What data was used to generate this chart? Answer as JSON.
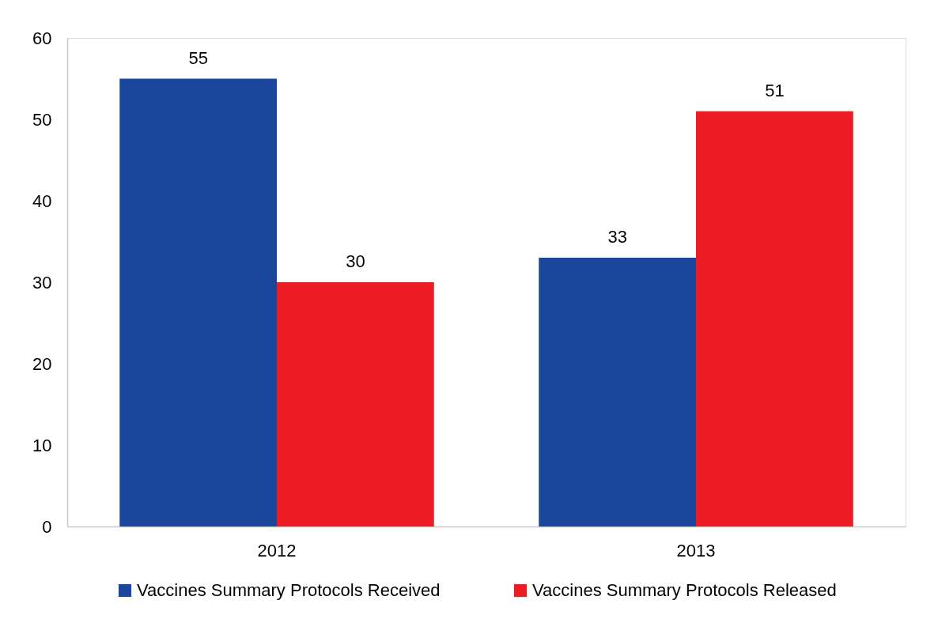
{
  "chart_data": {
    "type": "bar",
    "categories": [
      "2012",
      "2013"
    ],
    "series": [
      {
        "name": "Vaccines Summary Protocols Received",
        "color": "#1a469c",
        "values": [
          55,
          33
        ]
      },
      {
        "name": "Vaccines Summary Protocols Released",
        "color": "#ed1c24",
        "values": [
          30,
          51
        ]
      }
    ],
    "ylim": [
      0,
      60
    ],
    "yticks": [
      0,
      10,
      20,
      30,
      40,
      50,
      60
    ],
    "data_labels": true,
    "legend": "bottom",
    "grid": false
  }
}
